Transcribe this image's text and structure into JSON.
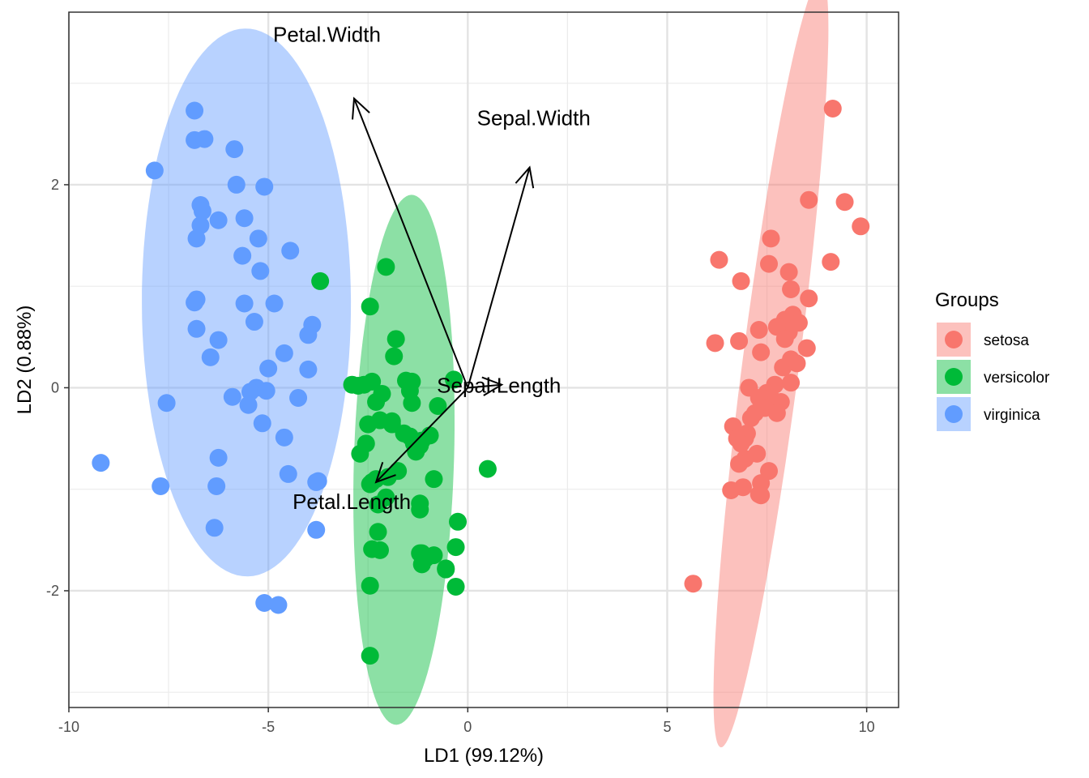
{
  "chart_data": {
    "type": "scatter",
    "xlabel": "LD1 (99.12%)",
    "ylabel": "LD2 (0.88%)",
    "xlim": [
      -10.0,
      10.8
    ],
    "ylim": [
      -3.15,
      3.7
    ],
    "xticks": [
      -10,
      -5,
      0,
      5,
      10
    ],
    "xtick_labels": [
      "-10",
      "-5",
      "0",
      "5",
      "10"
    ],
    "yticks": [
      -2,
      0,
      2
    ],
    "ytick_labels": [
      "-2",
      "0",
      "2"
    ],
    "grid": true,
    "legend_title": "Groups",
    "legend_position": "right",
    "series": [
      {
        "name": "setosa",
        "color": "#F8766D",
        "ellipse": {
          "cx": 7.6,
          "cy": 0.25,
          "rx": 4.0,
          "ry": 0.68,
          "angle_deg": 71.2
        },
        "x": [
          9.15,
          8.55,
          9.45,
          9.85,
          7.6,
          9.1,
          6.3,
          7.55,
          8.05,
          6.85,
          8.1,
          8.55,
          6.2,
          6.8,
          7.3,
          7.35,
          7.95,
          8.15,
          8.3,
          7.9,
          8.05,
          7.75,
          7.95,
          8.1,
          8.5,
          7.9,
          8.25,
          7.7,
          7.05,
          7.5,
          7.6,
          8.1,
          7.85,
          7.3,
          7.45,
          7.75,
          7.1,
          7.2,
          7.0,
          6.95,
          6.65,
          6.75,
          6.85,
          7.25,
          6.95,
          7.55,
          6.8,
          7.35,
          7.35,
          6.6,
          6.9,
          7.3,
          5.65
        ],
        "y": [
          2.75,
          1.85,
          1.83,
          1.59,
          1.47,
          1.24,
          1.26,
          1.22,
          1.14,
          1.05,
          0.97,
          0.88,
          0.44,
          0.46,
          0.57,
          0.35,
          0.67,
          0.72,
          0.64,
          0.6,
          0.55,
          0.6,
          0.48,
          0.28,
          0.39,
          0.2,
          0.24,
          0.03,
          0.0,
          -0.05,
          -0.1,
          0.05,
          -0.14,
          -0.1,
          -0.2,
          -0.25,
          -0.3,
          -0.25,
          -0.45,
          -0.5,
          -0.38,
          -0.5,
          -0.55,
          -0.65,
          -0.7,
          -0.82,
          -0.75,
          -0.94,
          -1.06,
          -1.01,
          -0.98,
          -1.05,
          -1.93
        ]
      },
      {
        "name": "versicolor",
        "color": "#00BA38",
        "ellipse": {
          "cx": -1.6,
          "cy": -0.71,
          "rx": 2.62,
          "ry": 1.25,
          "angle_deg": -95.5
        },
        "x": [
          -3.7,
          -2.05,
          -2.45,
          -1.8,
          -1.85,
          -1.55,
          -2.4,
          -2.15,
          -1.4,
          -2.9,
          -2.6,
          -2.75,
          -0.35,
          -0.75,
          -1.45,
          -1.4,
          -2.3,
          -1.9,
          -1.45,
          -1.35,
          -2.2,
          -1.9,
          -1.6,
          -1.2,
          -2.5,
          -2.55,
          -1.3,
          -1.15,
          -0.95,
          -2.7,
          -2.45,
          -2.3,
          -1.75,
          -2.0,
          -2.25,
          -0.85,
          0.5,
          -2.05,
          -1.2,
          -2.4,
          -1.2,
          -0.25,
          -2.25,
          -2.4,
          -2.2,
          -1.15,
          -0.85,
          -0.3,
          -1.15,
          -0.55,
          -0.3,
          -2.45,
          -1.2,
          -1.05,
          -0.55,
          -2.45
        ],
        "y": [
          1.05,
          1.19,
          0.8,
          0.48,
          0.31,
          0.07,
          0.06,
          -0.06,
          0.06,
          0.03,
          0.03,
          0.02,
          0.08,
          -0.18,
          -0.03,
          -0.15,
          -0.14,
          -0.33,
          -0.48,
          -0.55,
          -0.32,
          -0.36,
          -0.45,
          -0.57,
          -0.36,
          -0.55,
          -0.63,
          -0.52,
          -0.47,
          -0.65,
          -0.95,
          -0.9,
          -0.82,
          -0.88,
          -1.15,
          -0.9,
          -0.8,
          -1.08,
          -1.2,
          -0.93,
          -1.14,
          -1.32,
          -1.42,
          -1.59,
          -1.6,
          -1.63,
          -1.65,
          -1.57,
          -1.74,
          -1.79,
          -1.96,
          -1.95,
          -1.63,
          -1.68,
          -1.78,
          -2.64
        ]
      },
      {
        "name": "virginica",
        "color": "#619CFF",
        "ellipse": {
          "cx": -5.55,
          "cy": 0.84,
          "rx": 2.7,
          "ry": 2.62,
          "angle_deg": 96.6
        },
        "x": [
          -6.85,
          -6.85,
          -6.6,
          -5.85,
          -7.85,
          -5.8,
          -5.1,
          -6.7,
          -6.65,
          -6.7,
          -5.6,
          -6.25,
          -6.8,
          -5.25,
          -4.45,
          -5.65,
          -5.2,
          -6.8,
          -6.85,
          -5.6,
          -4.85,
          -5.35,
          -6.8,
          -6.25,
          -3.9,
          -4.0,
          -4.6,
          -6.45,
          -5.0,
          -4.0,
          -5.3,
          -5.45,
          -5.05,
          -4.25,
          -5.9,
          -7.55,
          -5.5,
          -5.15,
          -4.6,
          -6.25,
          -4.5,
          -3.75,
          -7.7,
          -6.3,
          -9.2,
          -6.35,
          -3.8,
          -3.8,
          -5.1,
          -4.75
        ],
        "y": [
          2.73,
          2.44,
          2.45,
          2.35,
          2.14,
          2.0,
          1.98,
          1.8,
          1.74,
          1.6,
          1.67,
          1.65,
          1.47,
          1.47,
          1.35,
          1.3,
          1.15,
          0.87,
          0.84,
          0.83,
          0.83,
          0.65,
          0.58,
          0.47,
          0.62,
          0.52,
          0.34,
          0.3,
          0.19,
          0.18,
          0.0,
          -0.04,
          -0.03,
          -0.1,
          -0.09,
          -0.15,
          -0.17,
          -0.35,
          -0.49,
          -0.69,
          -0.85,
          -0.92,
          -0.97,
          -0.97,
          -0.74,
          -1.38,
          -1.4,
          -0.93,
          -2.12,
          -2.14
        ]
      }
    ],
    "loadings": [
      {
        "label": "Petal.Width",
        "x": -2.85,
        "y": 2.85
      },
      {
        "label": "Sepal.Width",
        "x": 1.55,
        "y": 2.17
      },
      {
        "label": "Sepal.Length",
        "x": 0.85,
        "y": 0.03
      },
      {
        "label": "Petal.Length",
        "x": -2.3,
        "y": -0.93
      }
    ]
  }
}
